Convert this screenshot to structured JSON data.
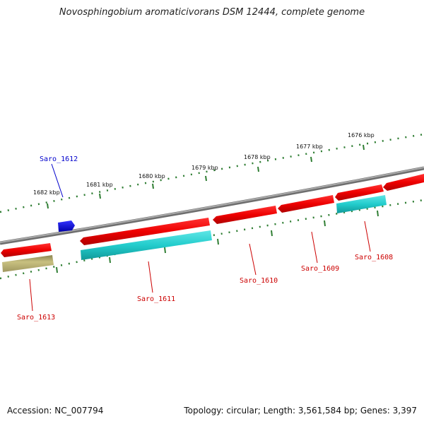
{
  "title": "Novosphingobium aromaticivorans DSM 12444, complete genome",
  "footer": {
    "accession": "Accession: NC_007794",
    "summary": "Topology: circular; Length: 3,561,584 bp; Genes: 3,397"
  },
  "ruler_labels": [
    "1682 kbp",
    "1681 kbp",
    "1680 kbp",
    "1679 kbp",
    "1678 kbp",
    "1677 kbp",
    "1676 kbp"
  ],
  "genes": [
    {
      "name": "Saro_1613",
      "color": "#cc0000"
    },
    {
      "name": "Saro_1612",
      "color": "#0000cc"
    },
    {
      "name": "Saro_1611",
      "color": "#cc0000"
    },
    {
      "name": "Saro_1610",
      "color": "#cc0000"
    },
    {
      "name": "Saro_1609",
      "color": "#cc0000"
    },
    {
      "name": "Saro_1608",
      "color": "#cc0000"
    }
  ],
  "colors": {
    "backbone": "#808080",
    "ruler": "#2e7d32",
    "cds": "#ee0000",
    "rna": "#22cccc",
    "misc": "#b5ad6a",
    "label_red": "#cc0000",
    "label_blue": "#0000cc"
  }
}
